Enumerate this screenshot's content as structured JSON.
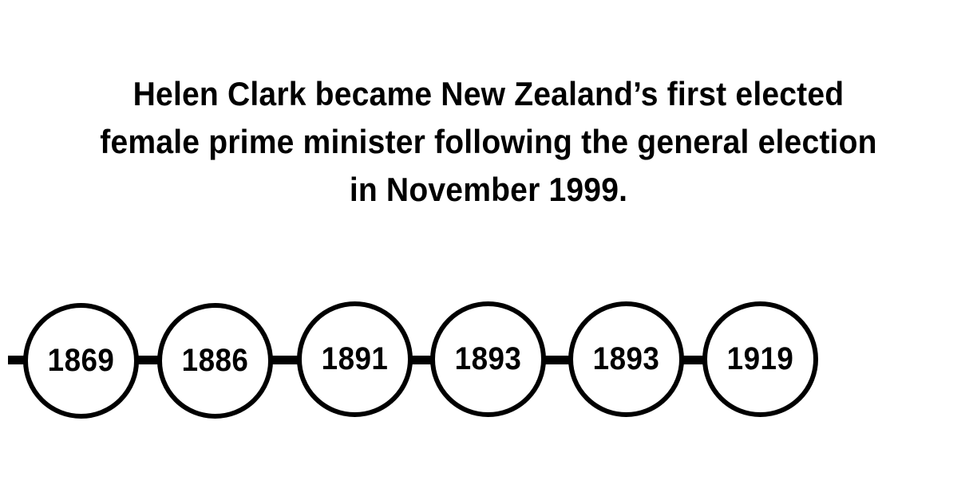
{
  "headline": {
    "lines": [
      "Helen Clark became New Zealand’s first elected",
      "female prime minister following the general election",
      "in November 1999."
    ]
  },
  "timeline": {
    "years": [
      "1869",
      "1886",
      "1891",
      "1893",
      "1893",
      "1919"
    ]
  }
}
